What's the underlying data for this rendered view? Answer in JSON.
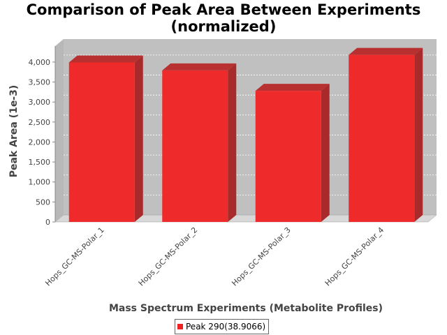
{
  "chart_data": {
    "type": "bar",
    "title_line1": "Comparison of Peak Area Between Experiments",
    "title_line2": "(normalized)",
    "xlabel": "Mass Spectrum Experiments (Metabolite Profiles)",
    "ylabel": "Peak Area (1e-3)",
    "categories": [
      "Hops_GC-MS-Polar_1",
      "Hops_GC-MS-Polar_2",
      "Hops_GC-MS-Polar_3",
      "Hops_GC-MS-Polar_4"
    ],
    "series": [
      {
        "name": "Peak 290(38.9066)",
        "values": [
          3990,
          3790,
          3280,
          4180
        ]
      }
    ],
    "ylim": [
      0,
      4400
    ],
    "yticks": [
      0,
      500,
      1000,
      1500,
      2000,
      2500,
      3000,
      3500,
      4000
    ],
    "ytick_labels": [
      "0",
      "500",
      "1,000",
      "1,500",
      "2,000",
      "2,500",
      "3,000",
      "3,500",
      "4,000"
    ],
    "grid": true,
    "legend_position": "bottom",
    "style": "3d-bar",
    "colors": {
      "bar_front": "#ee2a2a",
      "bar_top": "#b83030",
      "bar_side": "#a82a2a",
      "plot_wall": "#c0c0c0",
      "plot_floor": "#d8d8d8",
      "grid": "#ffffff"
    }
  }
}
